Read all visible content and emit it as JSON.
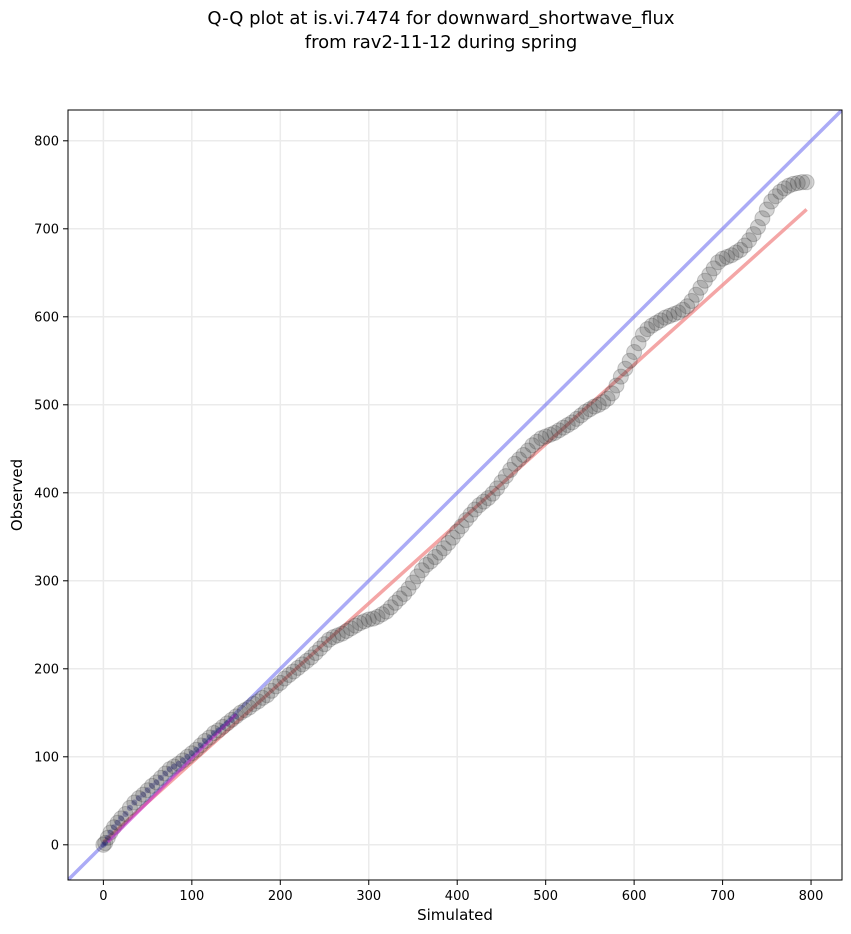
{
  "chart_data": {
    "type": "scatter",
    "title_lines": [
      "Q-Q plot at is.vi.7474 for downward_shortwave_flux",
      "from rav2-11-12 during spring"
    ],
    "xlabel": "Simulated",
    "ylabel": "Observed",
    "xlim": [
      -40,
      835
    ],
    "ylim": [
      -40,
      835
    ],
    "xticks": [
      0,
      100,
      200,
      300,
      400,
      500,
      600,
      700,
      800
    ],
    "yticks": [
      0,
      100,
      200,
      300,
      400,
      500,
      600,
      700,
      800
    ],
    "grid": true,
    "reference_line": {
      "color": "#6666ee",
      "from": [
        -40,
        -40
      ],
      "to": [
        835,
        835
      ]
    },
    "fit_line": {
      "color": "#f08080",
      "from": [
        0,
        3
      ],
      "to": [
        795,
        722
      ]
    },
    "low_fit_line": {
      "color": "#cc33cc",
      "from": [
        5,
        3
      ],
      "to": [
        150,
        148
      ]
    },
    "series": [
      {
        "marker_color": "#3a3a3a",
        "x": [
          0,
          2,
          5,
          8,
          12,
          16,
          20,
          25,
          30,
          35,
          40,
          45,
          50,
          55,
          60,
          65,
          70,
          75,
          80,
          85,
          90,
          95,
          100,
          105,
          110,
          115,
          120,
          125,
          130,
          135,
          140,
          145,
          150,
          155,
          160,
          165,
          170,
          175,
          180,
          185,
          190,
          195,
          200,
          205,
          210,
          215,
          220,
          225,
          230,
          235,
          240,
          245,
          250,
          255,
          260,
          265,
          270,
          275,
          280,
          285,
          290,
          295,
          300,
          305,
          310,
          315,
          320,
          325,
          330,
          335,
          340,
          345,
          350,
          355,
          360,
          365,
          370,
          375,
          380,
          385,
          390,
          395,
          400,
          405,
          410,
          415,
          420,
          425,
          430,
          435,
          440,
          445,
          450,
          455,
          460,
          465,
          470,
          475,
          480,
          485,
          490,
          495,
          500,
          505,
          510,
          515,
          520,
          525,
          530,
          535,
          540,
          545,
          550,
          555,
          560,
          565,
          570,
          575,
          580,
          585,
          590,
          595,
          600,
          605,
          610,
          615,
          620,
          625,
          630,
          635,
          640,
          645,
          650,
          655,
          660,
          665,
          670,
          675,
          680,
          685,
          690,
          695,
          700,
          705,
          710,
          715,
          720,
          725,
          730,
          735,
          740,
          745,
          750,
          755,
          760,
          765,
          770,
          775,
          780,
          785,
          790,
          795
        ],
        "y": [
          0,
          2,
          8,
          14,
          20,
          25,
          30,
          35,
          42,
          48,
          53,
          57,
          62,
          67,
          71,
          76,
          81,
          86,
          89,
          92,
          96,
          100,
          104,
          108,
          113,
          118,
          122,
          127,
          130,
          134,
          138,
          142,
          146,
          150,
          153,
          156,
          160,
          163,
          167,
          170,
          175,
          180,
          184,
          189,
          193,
          197,
          201,
          205,
          209,
          213,
          218,
          223,
          228,
          233,
          236,
          238,
          240,
          243,
          246,
          249,
          252,
          254,
          256,
          257,
          259,
          262,
          265,
          270,
          275,
          280,
          285,
          291,
          298,
          305,
          312,
          318,
          322,
          327,
          332,
          337,
          343,
          349,
          356,
          362,
          369,
          375,
          381,
          386,
          390,
          394,
          399,
          405,
          412,
          419,
          426,
          433,
          438,
          443,
          448,
          454,
          458,
          462,
          464,
          466,
          468,
          471,
          474,
          477,
          480,
          484,
          488,
          492,
          495,
          498,
          500,
          503,
          507,
          513,
          522,
          532,
          541,
          550,
          560,
          570,
          580,
          586,
          590,
          593,
          596,
          599,
          601,
          603,
          605,
          608,
          612,
          618,
          625,
          633,
          641,
          648,
          655,
          662,
          666,
          668,
          670,
          673,
          676,
          681,
          687,
          694,
          702,
          712,
          722,
          731,
          737,
          742,
          746,
          749,
          751,
          752,
          753,
          753
        ]
      }
    ]
  }
}
